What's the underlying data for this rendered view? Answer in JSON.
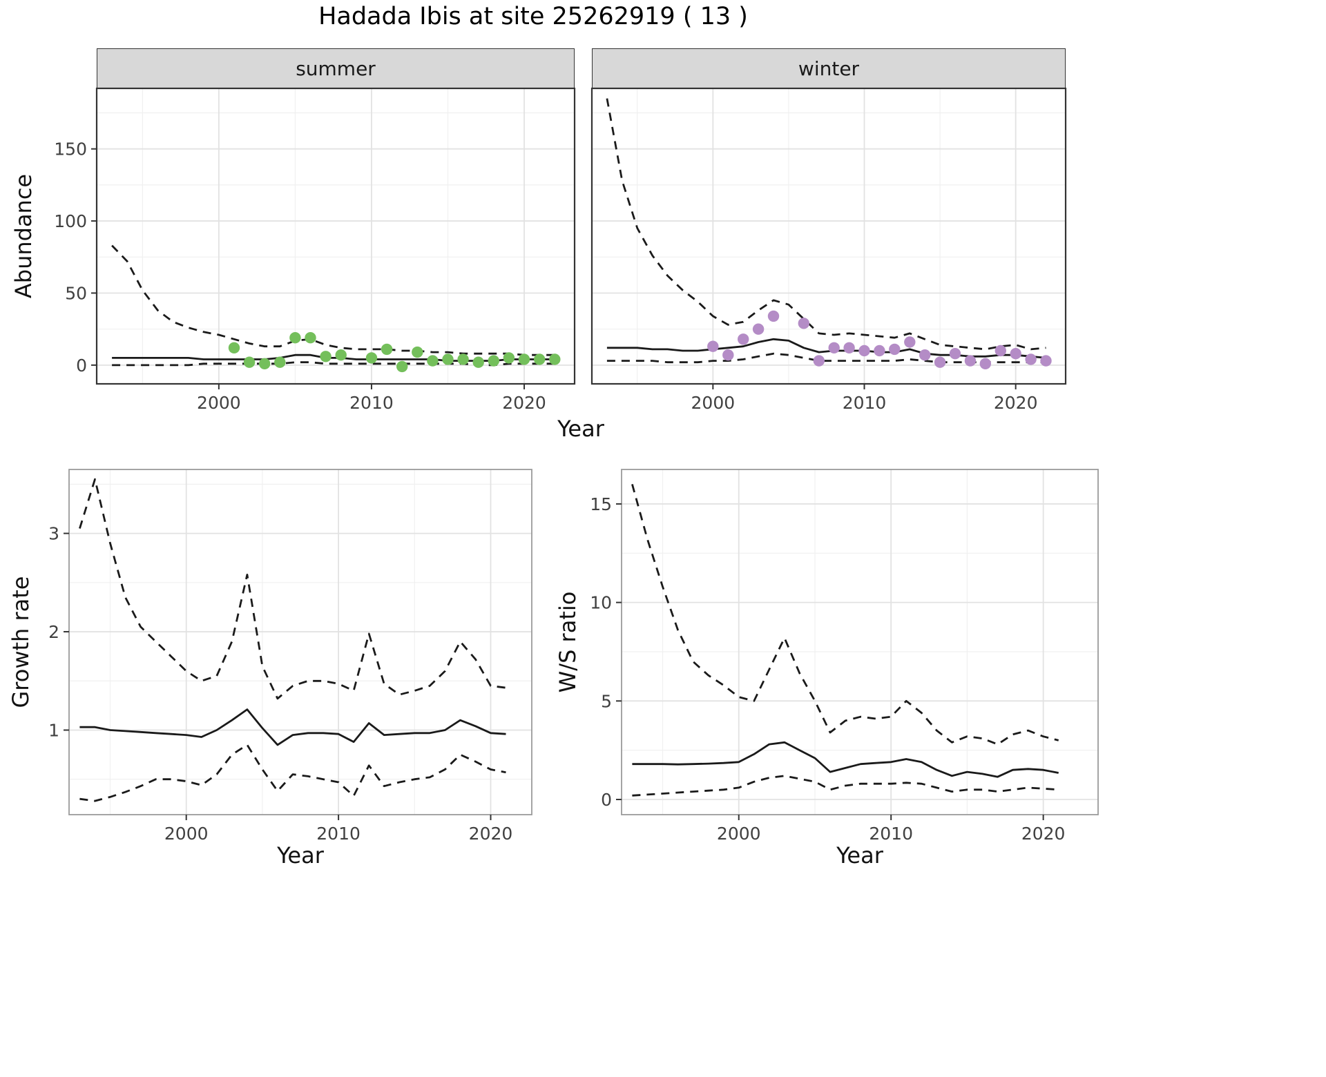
{
  "title": "Hadada Ibis at site 25262919 ( 13 )",
  "chart_data": [
    {
      "id": "abundance_summer",
      "type": "line+scatter",
      "facet_label": "summer",
      "xlabel": "Year",
      "ylabel": "Abundance",
      "xlim": [
        1992.0,
        2023.3
      ],
      "ylim": [
        -13,
        192
      ],
      "xticks": [
        2000,
        2010,
        2020
      ],
      "xticks_minor": [
        1995,
        2005,
        2015
      ],
      "yticks": [
        0,
        50,
        100,
        150
      ],
      "yticks_minor": [
        25,
        75,
        125,
        175
      ],
      "line_color": "#1a1a1a",
      "point_color": "#74bf5b",
      "x": [
        1993,
        1994,
        1995,
        1996,
        1997,
        1998,
        1999,
        2000,
        2001,
        2002,
        2003,
        2004,
        2005,
        2006,
        2007,
        2008,
        2009,
        2010,
        2011,
        2012,
        2013,
        2014,
        2015,
        2016,
        2017,
        2018,
        2019,
        2020,
        2021,
        2022
      ],
      "series": [
        {
          "name": "upper_ci",
          "style": "dashed",
          "y": [
            83,
            72,
            52,
            38,
            30,
            26,
            23,
            21,
            18,
            15,
            13,
            13,
            17,
            18,
            14,
            12,
            11,
            11,
            11,
            10,
            10,
            9,
            9,
            8,
            8,
            8,
            8,
            7,
            7,
            7
          ]
        },
        {
          "name": "median",
          "style": "solid",
          "y": [
            5,
            5,
            5,
            5,
            5,
            5,
            4,
            4,
            4,
            4,
            4,
            5,
            7,
            7,
            5,
            5,
            4,
            4,
            4,
            4,
            4,
            4,
            3,
            3,
            3,
            3,
            4,
            4,
            4,
            4
          ]
        },
        {
          "name": "lower_ci",
          "style": "dashed",
          "y": [
            0,
            0,
            0,
            0,
            0,
            0,
            1,
            1,
            1,
            1,
            1,
            1,
            2,
            2,
            1,
            1,
            1,
            1,
            1,
            1,
            1,
            1,
            1,
            1,
            0,
            0,
            1,
            1,
            1,
            1
          ]
        }
      ],
      "points": {
        "x": [
          2001,
          2002,
          2003,
          2004,
          2005,
          2006,
          2007,
          2008,
          2010,
          2011,
          2012,
          2013,
          2014,
          2015,
          2016,
          2017,
          2018,
          2019,
          2020,
          2021,
          2022
        ],
        "y": [
          12,
          2,
          1,
          2,
          19,
          19,
          6,
          7,
          5,
          11,
          -1,
          9,
          3,
          4,
          4,
          2,
          3,
          5,
          4,
          4,
          4
        ]
      }
    },
    {
      "id": "abundance_winter",
      "type": "line+scatter",
      "facet_label": "winter",
      "xlabel": "Year",
      "ylabel": "Abundance",
      "xlim": [
        1992.0,
        2023.3
      ],
      "ylim": [
        -13,
        192
      ],
      "xticks": [
        2000,
        2010,
        2020
      ],
      "xticks_minor": [
        1995,
        2005,
        2015
      ],
      "yticks": [
        0,
        50,
        100,
        150
      ],
      "yticks_minor": [
        25,
        75,
        125,
        175
      ],
      "line_color": "#1a1a1a",
      "point_color": "#b48cc6",
      "x": [
        1993,
        1994,
        1995,
        1996,
        1997,
        1998,
        1999,
        2000,
        2001,
        2002,
        2003,
        2004,
        2005,
        2006,
        2007,
        2008,
        2009,
        2010,
        2011,
        2012,
        2013,
        2014,
        2015,
        2016,
        2017,
        2018,
        2019,
        2020,
        2021,
        2022
      ],
      "series": [
        {
          "name": "upper_ci",
          "style": "dashed",
          "y": [
            185,
            128,
            95,
            76,
            62,
            52,
            44,
            34,
            28,
            30,
            38,
            45,
            42,
            32,
            22,
            21,
            22,
            21,
            20,
            19,
            22,
            18,
            14,
            13,
            12,
            11,
            13,
            14,
            11,
            12
          ]
        },
        {
          "name": "median",
          "style": "solid",
          "y": [
            12,
            12,
            12,
            11,
            11,
            10,
            10,
            11,
            12,
            13,
            16,
            18,
            17,
            12,
            9,
            10,
            10,
            10,
            9,
            9,
            11,
            8,
            7,
            7,
            6,
            6,
            7,
            7,
            6,
            5
          ]
        },
        {
          "name": "lower_ci",
          "style": "dashed",
          "y": [
            3,
            3,
            3,
            3,
            2,
            2,
            2,
            3,
            3,
            4,
            6,
            8,
            7,
            5,
            3,
            3,
            3,
            3,
            3,
            3,
            4,
            3,
            2,
            2,
            2,
            2,
            2,
            2,
            2,
            2
          ]
        }
      ],
      "points": {
        "x": [
          2000,
          2001,
          2002,
          2003,
          2004,
          2006,
          2007,
          2008,
          2009,
          2010,
          2011,
          2012,
          2013,
          2014,
          2015,
          2016,
          2017,
          2018,
          2019,
          2020,
          2021,
          2022
        ],
        "y": [
          13,
          7,
          18,
          25,
          34,
          29,
          3,
          12,
          12,
          10,
          10,
          11,
          16,
          7,
          2,
          8,
          3,
          1,
          10,
          8,
          4,
          3
        ]
      }
    },
    {
      "id": "growth_rate",
      "type": "line",
      "xlabel": "Year",
      "ylabel": "Growth rate",
      "xlim": [
        1992.3,
        2022.7
      ],
      "ylim": [
        0.14,
        3.65
      ],
      "xticks": [
        2000,
        2010,
        2020
      ],
      "xticks_minor": [
        1995,
        2005,
        2015
      ],
      "yticks": [
        1,
        2,
        3
      ],
      "yticks_minor": [
        0.5,
        1.5,
        2.5,
        3.5
      ],
      "line_color": "#1a1a1a",
      "x": [
        1993,
        1994,
        1995,
        1996,
        1997,
        1998,
        1999,
        2000,
        2001,
        2002,
        2003,
        2004,
        2005,
        2006,
        2007,
        2008,
        2009,
        2010,
        2011,
        2012,
        2013,
        2014,
        2015,
        2016,
        2017,
        2018,
        2019,
        2020,
        2021
      ],
      "series": [
        {
          "name": "upper_ci",
          "style": "dashed",
          "y": [
            3.05,
            3.55,
            2.9,
            2.35,
            2.05,
            1.9,
            1.75,
            1.6,
            1.5,
            1.55,
            1.9,
            2.58,
            1.65,
            1.32,
            1.45,
            1.5,
            1.5,
            1.47,
            1.4,
            1.98,
            1.47,
            1.36,
            1.4,
            1.45,
            1.6,
            1.9,
            1.72,
            1.45,
            1.43
          ]
        },
        {
          "name": "median",
          "style": "solid",
          "y": [
            1.03,
            1.03,
            1.0,
            0.99,
            0.98,
            0.97,
            0.96,
            0.95,
            0.93,
            1.0,
            1.1,
            1.21,
            1.02,
            0.85,
            0.95,
            0.97,
            0.97,
            0.96,
            0.88,
            1.07,
            0.95,
            0.96,
            0.97,
            0.97,
            1.0,
            1.1,
            1.04,
            0.97,
            0.96
          ]
        },
        {
          "name": "lower_ci",
          "style": "dashed",
          "y": [
            0.3,
            0.28,
            0.32,
            0.37,
            0.43,
            0.5,
            0.5,
            0.48,
            0.44,
            0.55,
            0.75,
            0.85,
            0.6,
            0.38,
            0.55,
            0.53,
            0.5,
            0.47,
            0.33,
            0.64,
            0.43,
            0.47,
            0.5,
            0.52,
            0.6,
            0.75,
            0.68,
            0.6,
            0.57
          ]
        }
      ]
    },
    {
      "id": "ws_ratio",
      "type": "line",
      "xlabel": "Year",
      "ylabel": "W/S ratio",
      "xlim": [
        1992.3,
        2023.6
      ],
      "ylim": [
        -0.77,
        16.75
      ],
      "xticks": [
        2000,
        2010,
        2020
      ],
      "xticks_minor": [
        1995,
        2005,
        2015
      ],
      "yticks": [
        0,
        5,
        10,
        15
      ],
      "yticks_minor": [
        2.5,
        7.5,
        12.5
      ],
      "line_color": "#1a1a1a",
      "x": [
        1993,
        1994,
        1995,
        1996,
        1997,
        1998,
        1999,
        2000,
        2001,
        2002,
        2003,
        2004,
        2005,
        2006,
        2007,
        2008,
        2009,
        2010,
        2011,
        2012,
        2013,
        2014,
        2015,
        2016,
        2017,
        2018,
        2019,
        2020,
        2021
      ],
      "series": [
        {
          "name": "upper_ci",
          "style": "dashed",
          "y": [
            16,
            13.2,
            10.8,
            8.6,
            7.0,
            6.3,
            5.8,
            5.2,
            5.0,
            6.6,
            8.2,
            6.4,
            5.0,
            3.4,
            4.0,
            4.2,
            4.1,
            4.2,
            5.0,
            4.4,
            3.5,
            2.9,
            3.2,
            3.1,
            2.8,
            3.3,
            3.5,
            3.2,
            3.0
          ]
        },
        {
          "name": "median",
          "style": "solid",
          "y": [
            1.8,
            1.8,
            1.8,
            1.78,
            1.8,
            1.82,
            1.85,
            1.9,
            2.3,
            2.8,
            2.9,
            2.5,
            2.1,
            1.4,
            1.6,
            1.8,
            1.85,
            1.9,
            2.05,
            1.9,
            1.5,
            1.2,
            1.4,
            1.3,
            1.15,
            1.5,
            1.55,
            1.5,
            1.35
          ]
        },
        {
          "name": "lower_ci",
          "style": "dashed",
          "y": [
            0.2,
            0.25,
            0.3,
            0.35,
            0.4,
            0.45,
            0.5,
            0.6,
            0.9,
            1.1,
            1.2,
            1.05,
            0.9,
            0.5,
            0.7,
            0.8,
            0.8,
            0.8,
            0.85,
            0.8,
            0.6,
            0.4,
            0.5,
            0.5,
            0.4,
            0.5,
            0.6,
            0.55,
            0.5
          ]
        }
      ]
    }
  ]
}
